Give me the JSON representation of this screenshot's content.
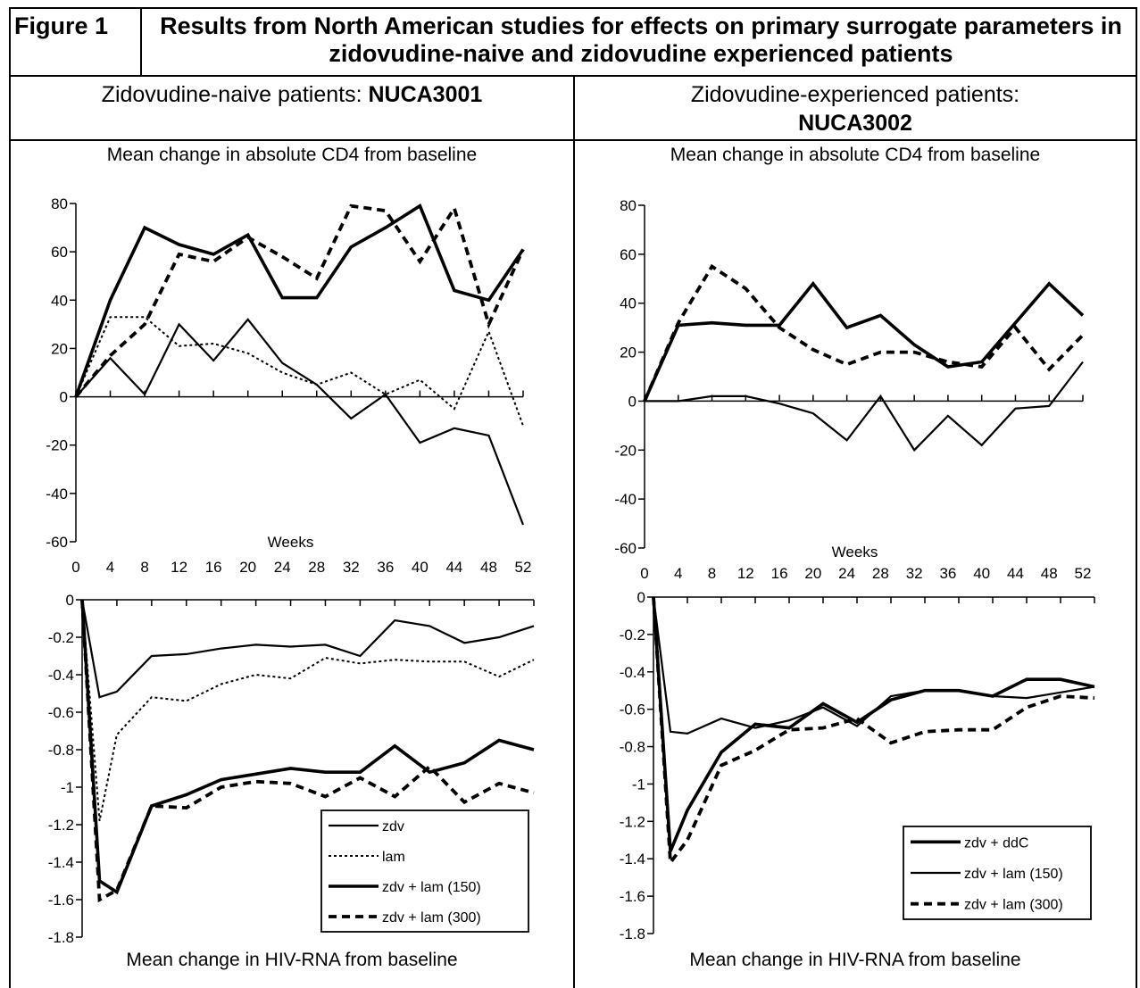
{
  "figure_label": "Figure 1",
  "figure_title": "Results from North American studies for effects on primary surrogate parameters in zidovudine-naive and zidovudine experienced patients",
  "left_column": {
    "heading": "Zidovudine-naive patients: ",
    "study": "NUCA3001"
  },
  "right_column": {
    "heading": "Zidovudine-experienced patients:",
    "study": "NUCA3002"
  },
  "colors": {
    "line": "#000000",
    "background": "#ffffff"
  },
  "chart_data": [
    {
      "id": "nuca3001-cd4",
      "type": "line",
      "title": "Mean change in absolute CD4 from baseline",
      "xlabel": "Weeks",
      "ylabel": "",
      "x": [
        0,
        4,
        8,
        12,
        16,
        20,
        24,
        28,
        32,
        36,
        40,
        44,
        48,
        52
      ],
      "xlim": [
        0,
        52
      ],
      "ylim": [
        -60,
        80
      ],
      "yticks": [
        -60,
        -40,
        -20,
        0,
        20,
        40,
        60,
        80
      ],
      "xticks": [
        0,
        4,
        8,
        12,
        16,
        20,
        24,
        28,
        32,
        36,
        40,
        44,
        48,
        52
      ],
      "grid": false,
      "series": [
        {
          "name": "zdv",
          "style": "solid-thin",
          "values": [
            0,
            16,
            1,
            30,
            15,
            32,
            14,
            5,
            -9,
            1,
            -19,
            -13,
            -16,
            -53
          ]
        },
        {
          "name": "lam",
          "style": "dotted",
          "values": [
            0,
            33,
            33,
            21,
            22,
            18,
            10,
            5,
            10,
            1,
            7,
            -5,
            27,
            -12
          ]
        },
        {
          "name": "zdv + lam (150)",
          "style": "solid-thick",
          "values": [
            0,
            40,
            70,
            63,
            59,
            67,
            41,
            41,
            62,
            70,
            79,
            44,
            40,
            61
          ]
        },
        {
          "name": "zdv + lam (300)",
          "style": "dashed-thick",
          "values": [
            0,
            17,
            30,
            59,
            56,
            66,
            58,
            49,
            79,
            77,
            56,
            78,
            30,
            61
          ]
        }
      ]
    },
    {
      "id": "nuca3002-cd4",
      "type": "line",
      "title": "Mean change in absolute CD4 from baseline",
      "xlabel": "Weeks",
      "ylabel": "",
      "x": [
        0,
        4,
        8,
        12,
        16,
        20,
        24,
        28,
        32,
        36,
        40,
        44,
        48,
        52
      ],
      "xlim": [
        0,
        52
      ],
      "ylim": [
        -60,
        80
      ],
      "yticks": [
        -60,
        -40,
        -20,
        0,
        20,
        40,
        60,
        80
      ],
      "xticks": [
        0,
        4,
        8,
        12,
        16,
        20,
        24,
        28,
        32,
        36,
        40,
        44,
        48,
        52
      ],
      "grid": false,
      "series": [
        {
          "name": "zdv + ddC",
          "style": "solid-thin",
          "values": [
            0,
            0,
            2,
            2,
            -1,
            -5,
            -16,
            2,
            -20,
            -6,
            -18,
            -3,
            -2,
            16
          ]
        },
        {
          "name": "zdv + lam (150)",
          "style": "solid-thick",
          "values": [
            0,
            31,
            32,
            31,
            31,
            48,
            30,
            35,
            23,
            14,
            16,
            32,
            48,
            35
          ]
        },
        {
          "name": "zdv + lam (300)",
          "style": "dashed-thick",
          "values": [
            0,
            32,
            55,
            46,
            30,
            21,
            15,
            20,
            20,
            16,
            14,
            30,
            13,
            27
          ]
        }
      ]
    },
    {
      "id": "nuca3001-rna",
      "type": "line",
      "title": "Mean change in HIV-RNA from baseline",
      "xlabel": "",
      "ylabel": "",
      "x": [
        0,
        2,
        4,
        8,
        12,
        16,
        20,
        24,
        28,
        32,
        36,
        40,
        44,
        48,
        52
      ],
      "xlim": [
        0,
        52
      ],
      "ylim": [
        -1.8,
        0
      ],
      "yticks": [
        -1.8,
        -1.6,
        -1.4,
        -1.2,
        -1,
        -0.8,
        -0.6,
        -0.4,
        -0.2,
        0
      ],
      "xticks": [
        0,
        4,
        8,
        12,
        16,
        20,
        24,
        28,
        32,
        36,
        40,
        44,
        48,
        52
      ],
      "grid": false,
      "legend": "bottom-right",
      "series": [
        {
          "name": "zdv",
          "style": "solid-thin",
          "values": [
            0,
            -0.52,
            -0.49,
            -0.3,
            -0.29,
            -0.26,
            -0.24,
            -0.25,
            -0.24,
            -0.3,
            -0.11,
            -0.14,
            -0.23,
            -0.2,
            -0.14
          ]
        },
        {
          "name": "lam",
          "style": "dotted",
          "values": [
            0,
            -1.18,
            -0.72,
            -0.52,
            -0.54,
            -0.45,
            -0.4,
            -0.42,
            -0.31,
            -0.34,
            -0.32,
            -0.33,
            -0.33,
            -0.41,
            -0.32
          ]
        },
        {
          "name": "zdv + lam (150)",
          "style": "solid-thick",
          "values": [
            0,
            -1.5,
            -1.56,
            -1.1,
            -1.04,
            -0.96,
            -0.93,
            -0.9,
            -0.92,
            -0.92,
            -0.78,
            -0.92,
            -0.87,
            -0.75,
            -0.8
          ]
        },
        {
          "name": "zdv + lam (300)",
          "style": "dashed-thick",
          "values": [
            0,
            -1.6,
            -1.55,
            -1.1,
            -1.11,
            -1.0,
            -0.97,
            -0.98,
            -1.05,
            -0.95,
            -1.05,
            -0.89,
            -1.08,
            -0.98,
            -1.03
          ]
        }
      ]
    },
    {
      "id": "nuca3002-rna",
      "type": "line",
      "title": "Mean change in HIV-RNA from baseline",
      "xlabel": "",
      "ylabel": "",
      "x": [
        0,
        2,
        4,
        8,
        12,
        16,
        20,
        24,
        28,
        32,
        36,
        40,
        44,
        48,
        52
      ],
      "xlim": [
        0,
        52
      ],
      "ylim": [
        -1.8,
        0
      ],
      "yticks": [
        -1.8,
        -1.6,
        -1.4,
        -1.2,
        -1,
        -0.8,
        -0.6,
        -0.4,
        -0.2,
        0
      ],
      "xticks": [
        0,
        4,
        8,
        12,
        16,
        20,
        24,
        28,
        32,
        36,
        40,
        44,
        48,
        52
      ],
      "grid": false,
      "legend": "bottom-right",
      "series": [
        {
          "name": "zdv + ddC",
          "style": "solid-thick",
          "values": [
            0,
            -1.36,
            -1.14,
            -0.83,
            -0.68,
            -0.7,
            -0.57,
            -0.67,
            -0.55,
            -0.5,
            -0.5,
            -0.53,
            -0.44,
            -0.44,
            -0.48
          ]
        },
        {
          "name": "zdv + lam (150)",
          "style": "solid-thin",
          "values": [
            0,
            -0.72,
            -0.73,
            -0.65,
            -0.7,
            -0.66,
            -0.59,
            -0.69,
            -0.53,
            -0.5,
            -0.5,
            -0.53,
            -0.54,
            -0.51,
            -0.48
          ]
        },
        {
          "name": "zdv + lam (300)",
          "style": "dashed-thick",
          "values": [
            0,
            -1.42,
            -1.3,
            -0.9,
            -0.82,
            -0.71,
            -0.7,
            -0.65,
            -0.78,
            -0.72,
            -0.71,
            -0.71,
            -0.59,
            -0.53,
            -0.54
          ]
        }
      ]
    }
  ]
}
